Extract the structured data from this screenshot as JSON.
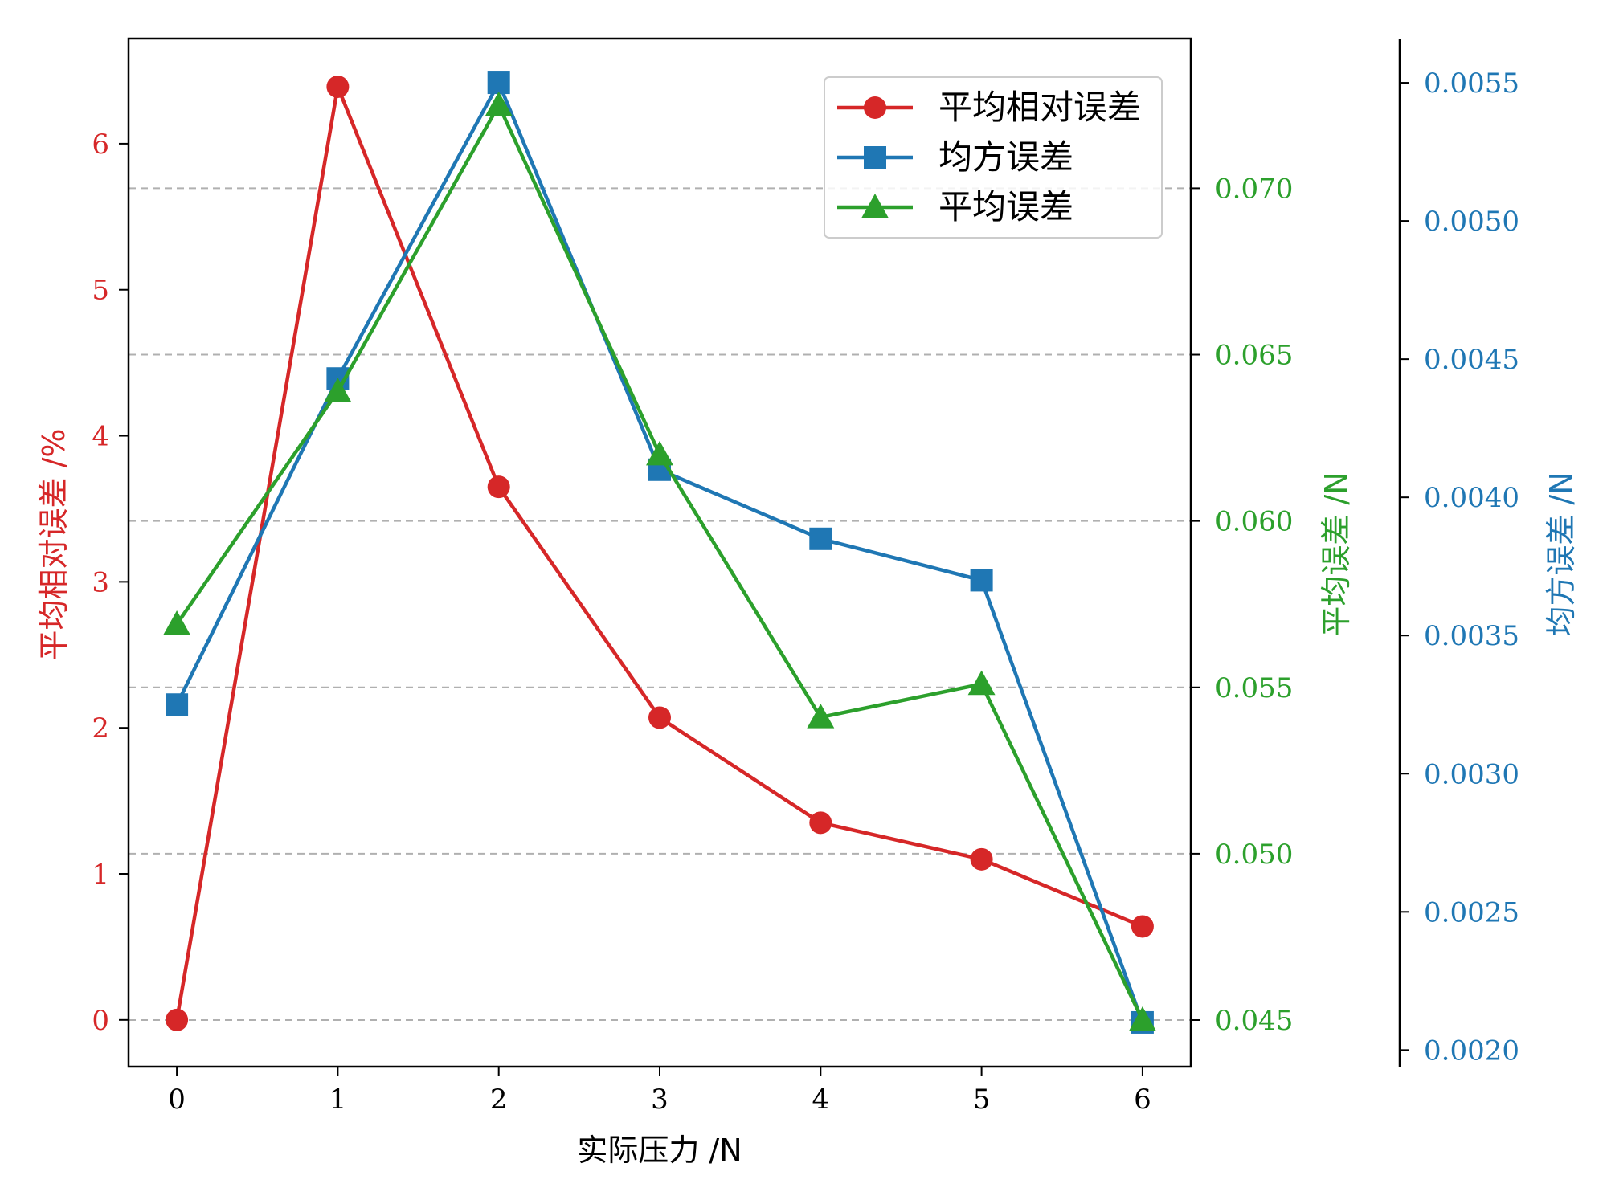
{
  "chart_data": {
    "type": "line",
    "x": [
      0,
      1,
      2,
      3,
      4,
      5,
      6
    ],
    "xlabel": "实际压力 /N",
    "xlim": [
      -0.3,
      6.3
    ],
    "x_ticks": [
      "0",
      "1",
      "2",
      "3",
      "4",
      "5",
      "6"
    ],
    "legend_position": "top-right",
    "grid": "horizontal dashed (gray), aligned to green axis ticks",
    "axes": {
      "left": {
        "label": "平均相对误差 /%",
        "color": "#d62728",
        "ylim": [
          -0.32,
          6.72
        ],
        "ticks": [
          "0",
          "1",
          "2",
          "3",
          "4",
          "5",
          "6"
        ],
        "tick_values": [
          0,
          1,
          2,
          3,
          4,
          5,
          6
        ]
      },
      "right_inner": {
        "label": "平均误差 /N",
        "color": "#2ca02c",
        "ylim": [
          0.0436,
          0.0745
        ],
        "ticks": [
          "0.045",
          "0.050",
          "0.055",
          "0.060",
          "0.065",
          "0.070"
        ],
        "tick_values": [
          0.045,
          0.05,
          0.055,
          0.06,
          0.065,
          0.07
        ]
      },
      "right_outer": {
        "label": "均方误差 /N",
        "color": "#1f77b4",
        "ylim": [
          0.00194,
          0.00566
        ],
        "ticks": [
          "0.0020",
          "0.0025",
          "0.0030",
          "0.0035",
          "0.0040",
          "0.0045",
          "0.0050",
          "0.0055"
        ],
        "tick_values": [
          0.002,
          0.0025,
          0.003,
          0.0035,
          0.004,
          0.0045,
          0.005,
          0.0055
        ]
      }
    },
    "series": [
      {
        "name": "平均相对误差",
        "axis": "left",
        "color": "#d62728",
        "marker": "circle",
        "values": [
          0.0,
          6.39,
          3.65,
          2.07,
          1.35,
          1.1,
          0.64
        ]
      },
      {
        "name": "均方误差",
        "axis": "right_outer",
        "color": "#1f77b4",
        "marker": "square",
        "values": [
          0.00325,
          0.00443,
          0.0055,
          0.0041,
          0.00385,
          0.0037,
          0.0021
        ]
      },
      {
        "name": "平均误差",
        "axis": "right_inner",
        "color": "#2ca02c",
        "marker": "triangle",
        "values": [
          0.0569,
          0.0639,
          0.0725,
          0.062,
          0.0541,
          0.0551,
          0.045
        ]
      }
    ]
  }
}
